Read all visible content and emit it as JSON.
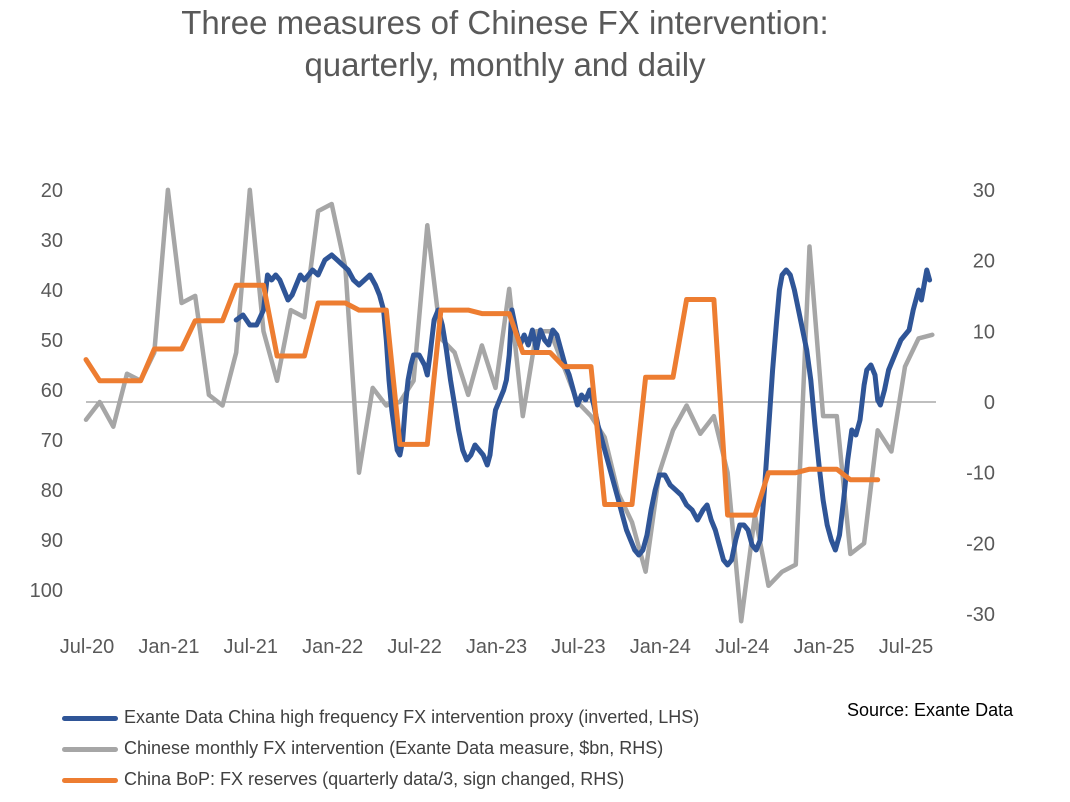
{
  "chart_data": {
    "type": "line",
    "title_lines": [
      "Three measures of Chinese FX intervention:",
      "quarterly, monthly and daily"
    ],
    "x_tick_labels": [
      "Jul-20",
      "Jan-21",
      "Jul-21",
      "Jan-22",
      "Jul-22",
      "Jan-23",
      "Jul-23",
      "Jan-24",
      "Jul-24",
      "Jan-25",
      "Jul-25"
    ],
    "x_range_months": [
      0,
      60
    ],
    "left_axis": {
      "ticks": [
        "20",
        "30",
        "40",
        "50",
        "60",
        "70",
        "80",
        "90",
        "100"
      ],
      "min": 20,
      "max": 104,
      "inverted": true
    },
    "right_axis": {
      "ticks": [
        "30",
        "20",
        "10",
        "0",
        "-10",
        "-20",
        "-30"
      ],
      "min": -31,
      "max": 30
    },
    "series": [
      {
        "name": "Exante Data China high frequency FX intervention proxy (inverted, LHS)",
        "axis": "left",
        "color": "#2F5597",
        "points": [
          [
            0,
            null
          ],
          [
            11.0,
            46
          ],
          [
            11.5,
            45
          ],
          [
            12.0,
            47
          ],
          [
            12.5,
            47
          ],
          [
            13.0,
            44
          ],
          [
            13.3,
            37
          ],
          [
            13.6,
            38
          ],
          [
            13.9,
            37
          ],
          [
            14.2,
            38
          ],
          [
            14.5,
            40
          ],
          [
            14.8,
            42
          ],
          [
            15.1,
            41
          ],
          [
            15.4,
            39
          ],
          [
            15.7,
            37
          ],
          [
            16.0,
            38
          ],
          [
            16.3,
            37
          ],
          [
            16.6,
            36
          ],
          [
            17.0,
            37
          ],
          [
            17.5,
            34
          ],
          [
            18.0,
            33
          ],
          [
            18.4,
            34
          ],
          [
            18.8,
            35
          ],
          [
            19.2,
            36
          ],
          [
            19.6,
            38
          ],
          [
            20.0,
            39
          ],
          [
            20.4,
            38
          ],
          [
            20.8,
            37
          ],
          [
            21.2,
            39
          ],
          [
            21.5,
            41
          ],
          [
            21.8,
            44
          ],
          [
            22.0,
            50
          ],
          [
            22.2,
            58
          ],
          [
            22.4,
            64
          ],
          [
            22.6,
            68
          ],
          [
            22.8,
            72
          ],
          [
            23.0,
            73
          ],
          [
            23.2,
            70
          ],
          [
            23.4,
            63
          ],
          [
            23.6,
            58
          ],
          [
            23.8,
            55
          ],
          [
            24.0,
            53
          ],
          [
            24.4,
            53
          ],
          [
            24.8,
            55
          ],
          [
            25.0,
            57
          ],
          [
            25.2,
            53
          ],
          [
            25.5,
            46
          ],
          [
            25.8,
            44
          ],
          [
            26.1,
            47
          ],
          [
            26.4,
            52
          ],
          [
            26.7,
            58
          ],
          [
            27.0,
            63
          ],
          [
            27.3,
            68
          ],
          [
            27.6,
            72
          ],
          [
            27.9,
            74
          ],
          [
            28.2,
            73
          ],
          [
            28.5,
            71
          ],
          [
            28.8,
            72
          ],
          [
            29.1,
            73
          ],
          [
            29.4,
            75
          ],
          [
            29.6,
            73
          ],
          [
            29.8,
            68
          ],
          [
            30.0,
            64
          ],
          [
            30.3,
            62
          ],
          [
            30.6,
            60
          ],
          [
            30.8,
            58
          ],
          [
            31.0,
            53
          ],
          [
            31.2,
            44
          ],
          [
            31.5,
            48
          ],
          [
            31.8,
            51
          ],
          [
            32.1,
            49
          ],
          [
            32.4,
            51
          ],
          [
            32.7,
            48
          ],
          [
            33.0,
            52
          ],
          [
            33.3,
            48
          ],
          [
            33.6,
            50
          ],
          [
            33.9,
            51
          ],
          [
            34.2,
            48
          ],
          [
            34.5,
            49
          ],
          [
            34.8,
            52
          ],
          [
            35.1,
            55
          ],
          [
            35.4,
            57
          ],
          [
            35.7,
            60
          ],
          [
            36.0,
            63
          ],
          [
            36.3,
            61
          ],
          [
            36.6,
            62
          ],
          [
            36.9,
            60
          ],
          [
            37.2,
            63
          ],
          [
            37.5,
            67
          ],
          [
            37.8,
            70
          ],
          [
            38.1,
            73
          ],
          [
            38.4,
            76
          ],
          [
            38.7,
            79
          ],
          [
            39.0,
            82
          ],
          [
            39.3,
            85
          ],
          [
            39.6,
            88
          ],
          [
            39.9,
            90
          ],
          [
            40.2,
            92
          ],
          [
            40.5,
            93
          ],
          [
            40.8,
            92
          ],
          [
            41.1,
            89
          ],
          [
            41.4,
            84
          ],
          [
            41.7,
            80
          ],
          [
            42.0,
            77
          ],
          [
            42.4,
            77
          ],
          [
            42.8,
            79
          ],
          [
            43.2,
            80
          ],
          [
            43.6,
            81
          ],
          [
            44.0,
            83
          ],
          [
            44.4,
            84
          ],
          [
            44.8,
            86
          ],
          [
            45.2,
            84
          ],
          [
            45.5,
            83
          ],
          [
            45.8,
            86
          ],
          [
            46.1,
            88
          ],
          [
            46.4,
            91
          ],
          [
            46.7,
            94
          ],
          [
            47.0,
            95
          ],
          [
            47.3,
            94
          ],
          [
            47.6,
            90
          ],
          [
            47.9,
            87
          ],
          [
            48.2,
            87
          ],
          [
            48.5,
            88
          ],
          [
            48.8,
            91
          ],
          [
            49.1,
            92
          ],
          [
            49.4,
            90
          ],
          [
            49.7,
            80
          ],
          [
            50.0,
            68
          ],
          [
            50.3,
            56
          ],
          [
            50.6,
            46
          ],
          [
            50.8,
            40
          ],
          [
            51.0,
            37
          ],
          [
            51.3,
            36
          ],
          [
            51.6,
            37
          ],
          [
            51.9,
            40
          ],
          [
            52.2,
            44
          ],
          [
            52.5,
            48
          ],
          [
            52.8,
            52
          ],
          [
            53.1,
            58
          ],
          [
            53.4,
            67
          ],
          [
            53.7,
            75
          ],
          [
            54.0,
            82
          ],
          [
            54.3,
            87
          ],
          [
            54.6,
            90
          ],
          [
            54.9,
            92
          ],
          [
            55.2,
            89
          ],
          [
            55.5,
            82
          ],
          [
            55.8,
            74
          ],
          [
            56.1,
            68
          ],
          [
            56.4,
            69
          ],
          [
            56.7,
            66
          ],
          [
            57.0,
            59
          ],
          [
            57.2,
            56
          ],
          [
            57.5,
            55
          ],
          [
            57.8,
            57
          ],
          [
            58.0,
            62
          ],
          [
            58.2,
            63
          ],
          [
            58.5,
            60
          ],
          [
            58.8,
            56
          ],
          [
            59.1,
            54
          ],
          [
            59.4,
            52
          ],
          [
            59.7,
            50
          ],
          [
            60.0,
            49
          ],
          [
            60.3,
            48
          ],
          [
            60.6,
            44
          ],
          [
            60.8,
            42
          ],
          [
            61.0,
            40
          ],
          [
            61.2,
            42
          ],
          [
            61.4,
            39
          ],
          [
            61.6,
            36
          ],
          [
            61.8,
            38
          ]
        ]
      },
      {
        "name": "Chinese monthly FX intervention (Exante Data measure, $bn, RHS)",
        "axis": "right",
        "color": "#A6A6A6",
        "points": [
          [
            0,
            -2.5
          ],
          [
            1,
            0
          ],
          [
            2,
            -3.5
          ],
          [
            3,
            4
          ],
          [
            4,
            3
          ],
          [
            5,
            7
          ],
          [
            6,
            30
          ],
          [
            7,
            14
          ],
          [
            8,
            15
          ],
          [
            9,
            1
          ],
          [
            10,
            -0.5
          ],
          [
            11,
            7
          ],
          [
            12,
            30
          ],
          [
            13,
            10
          ],
          [
            14,
            3
          ],
          [
            15,
            13
          ],
          [
            16,
            12
          ],
          [
            17,
            27
          ],
          [
            18,
            28
          ],
          [
            19,
            19
          ],
          [
            20,
            -10
          ],
          [
            21,
            2
          ],
          [
            22,
            -0.5
          ],
          [
            23,
            0
          ],
          [
            24,
            3
          ],
          [
            25,
            25
          ],
          [
            26,
            9
          ],
          [
            27,
            7
          ],
          [
            28,
            1
          ],
          [
            29,
            8
          ],
          [
            30,
            2
          ],
          [
            31,
            16
          ],
          [
            32,
            -2
          ],
          [
            33,
            10
          ],
          [
            34,
            10
          ],
          [
            35,
            5
          ],
          [
            36,
            0
          ],
          [
            37,
            -2
          ],
          [
            38,
            -5
          ],
          [
            39,
            -13
          ],
          [
            40,
            -17
          ],
          [
            41,
            -24
          ],
          [
            42,
            -10
          ],
          [
            43,
            -4
          ],
          [
            44,
            -0.5
          ],
          [
            45,
            -4.5
          ],
          [
            46,
            -2
          ],
          [
            47,
            -10
          ],
          [
            48,
            -31
          ],
          [
            49,
            -16
          ],
          [
            50,
            -26
          ],
          [
            51,
            -24
          ],
          [
            52,
            -23
          ],
          [
            53,
            22
          ],
          [
            54,
            -2
          ],
          [
            55,
            -2
          ],
          [
            56,
            -21.5
          ],
          [
            57,
            -20
          ],
          [
            58,
            -4
          ],
          [
            59,
            -7
          ],
          [
            60,
            5
          ],
          [
            61,
            9
          ],
          [
            62,
            9.5
          ]
        ]
      },
      {
        "name": "China BoP: FX reserves (quarterly data/3, sign changed, RHS)",
        "axis": "right",
        "color": "#ED7D31",
        "points": [
          [
            0,
            6
          ],
          [
            1,
            3
          ],
          [
            2,
            3
          ],
          [
            3,
            3
          ],
          [
            4,
            3
          ],
          [
            5,
            7.5
          ],
          [
            6,
            7.5
          ],
          [
            7,
            7.5
          ],
          [
            8,
            11.5
          ],
          [
            9,
            11.5
          ],
          [
            10,
            11.5
          ],
          [
            11,
            16.5
          ],
          [
            12,
            16.5
          ],
          [
            13,
            16.5
          ],
          [
            14,
            6.5
          ],
          [
            15,
            6.5
          ],
          [
            16,
            6.5
          ],
          [
            17,
            14
          ],
          [
            18,
            14
          ],
          [
            19,
            14
          ],
          [
            20,
            13
          ],
          [
            21,
            13
          ],
          [
            22,
            13
          ],
          [
            23,
            -6
          ],
          [
            24,
            -6
          ],
          [
            25,
            -6
          ],
          [
            26,
            13
          ],
          [
            27,
            13
          ],
          [
            28,
            13
          ],
          [
            29,
            12.5
          ],
          [
            30,
            12.5
          ],
          [
            31,
            12.5
          ],
          [
            32,
            7
          ],
          [
            33,
            7
          ],
          [
            34,
            7
          ],
          [
            35,
            5
          ],
          [
            36,
            5
          ],
          [
            37,
            5
          ],
          [
            38,
            -14.5
          ],
          [
            39,
            -14.5
          ],
          [
            40,
            -14.5
          ],
          [
            41,
            3.5
          ],
          [
            42,
            3.5
          ],
          [
            43,
            3.5
          ],
          [
            44,
            14.5
          ],
          [
            45,
            14.5
          ],
          [
            46,
            14.5
          ],
          [
            47,
            -16
          ],
          [
            48,
            -16
          ],
          [
            49,
            -16
          ],
          [
            50,
            -10
          ],
          [
            51,
            -10
          ],
          [
            52,
            -10
          ],
          [
            53,
            -9.5
          ],
          [
            54,
            -9.5
          ],
          [
            55,
            -9.5
          ],
          [
            56,
            -11
          ],
          [
            57,
            -11
          ],
          [
            58,
            -11
          ]
        ]
      }
    ],
    "legend_position": "bottom-left",
    "annotation": "Source: Exante Data"
  }
}
